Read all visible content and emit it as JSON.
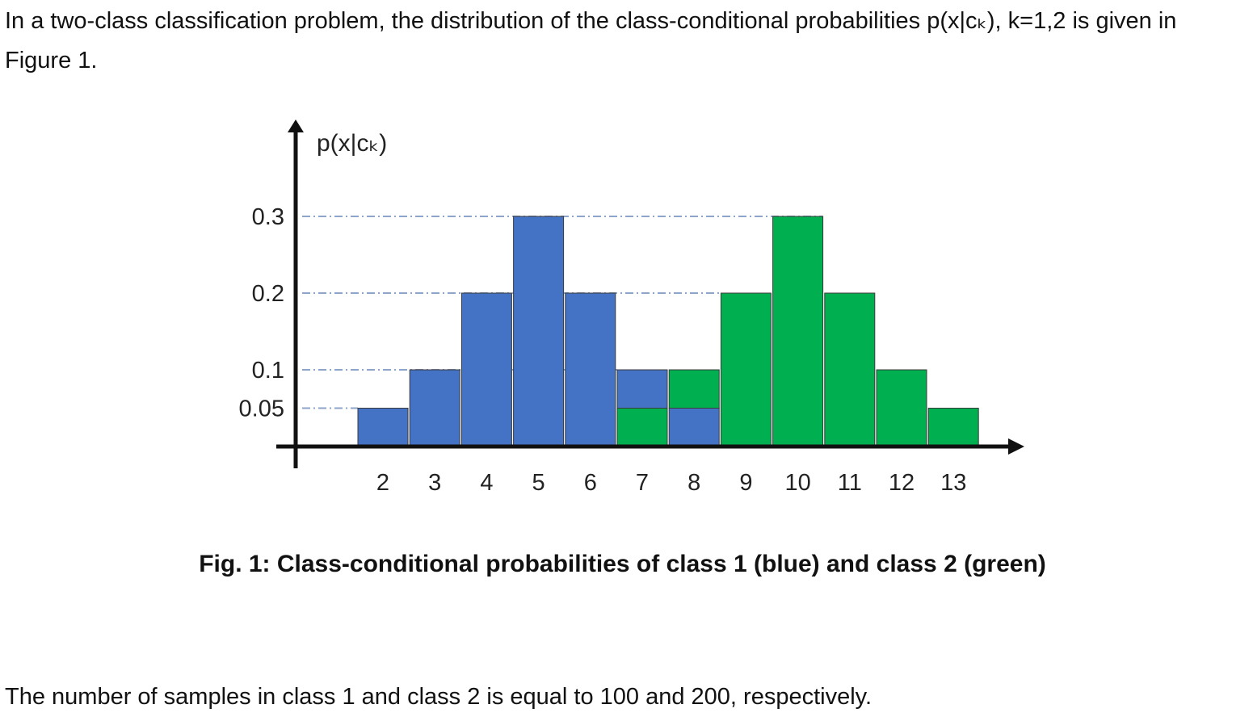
{
  "document": {
    "intro": "In a two-class classification problem, the distribution of the class-conditional probabilities p(x|cₖ), k=1,2 is given in Figure 1.",
    "caption": "Fig. 1: Class-conditional probabilities of class 1 (blue) and class 2 (green)",
    "outro": "The number of samples in class 1 and class 2 is equal to 100 and 200, respectively."
  },
  "chart_data": {
    "type": "bar",
    "title": "",
    "xlabel": "",
    "ylabel": "p(x|cₖ)",
    "x": [
      2,
      3,
      4,
      5,
      6,
      7,
      8,
      9,
      10,
      11,
      12,
      13
    ],
    "y_ticks": [
      0.05,
      0.1,
      0.2,
      0.3
    ],
    "ylim": [
      0,
      0.33
    ],
    "grid": "dashed reference lines at y ticks",
    "legend": "none",
    "series": [
      {
        "name": "class 1",
        "color": "#4472C4",
        "points": [
          {
            "x": 2,
            "y": 0.05
          },
          {
            "x": 3,
            "y": 0.1
          },
          {
            "x": 4,
            "y": 0.2
          },
          {
            "x": 5,
            "y": 0.3
          },
          {
            "x": 6,
            "y": 0.2
          },
          {
            "x": 7,
            "y": 0.1
          },
          {
            "x": 8,
            "y": 0.05
          }
        ]
      },
      {
        "name": "class 2",
        "color": "#00B050",
        "points": [
          {
            "x": 7,
            "y": 0.05
          },
          {
            "x": 8,
            "y": 0.1
          },
          {
            "x": 9,
            "y": 0.2
          },
          {
            "x": 10,
            "y": 0.3
          },
          {
            "x": 11,
            "y": 0.2
          },
          {
            "x": 12,
            "y": 0.1
          },
          {
            "x": 13,
            "y": 0.05
          }
        ]
      }
    ]
  }
}
